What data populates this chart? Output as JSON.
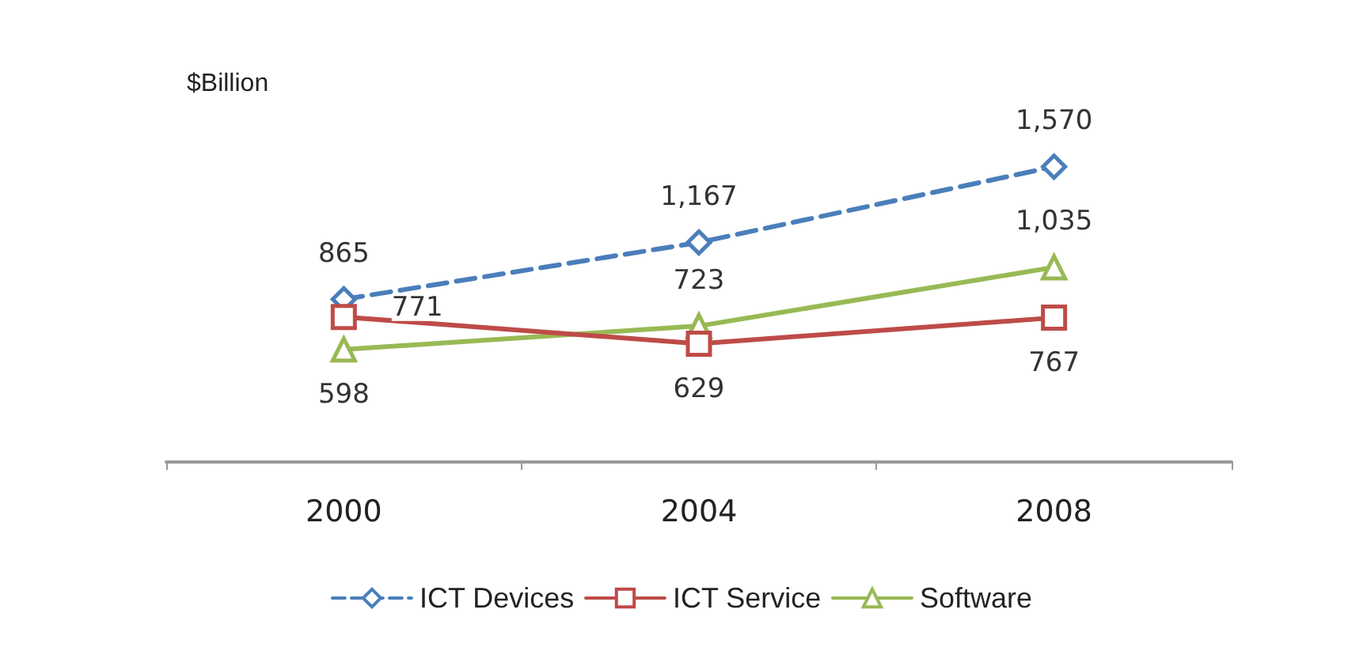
{
  "chart_data": {
    "type": "line",
    "ylabel": "$Billion",
    "categories": [
      "2000",
      "2004",
      "2008"
    ],
    "series": [
      {
        "name": "ICT Devices",
        "color": "#4a7ebb",
        "values": [
          865,
          1167,
          1570
        ],
        "value_labels": [
          "865",
          "1,167",
          "1,570"
        ],
        "marker": "diamond",
        "line_style": "dashed"
      },
      {
        "name": "ICT Service",
        "color": "#be4b48",
        "values": [
          771,
          629,
          767
        ],
        "value_labels": [
          "771",
          "629",
          "767"
        ],
        "marker": "square",
        "line_style": "solid"
      },
      {
        "name": "Software",
        "color": "#98b954",
        "values": [
          598,
          723,
          1035
        ],
        "value_labels": [
          "598",
          "723",
          "1,035"
        ],
        "marker": "triangle",
        "line_style": "solid"
      }
    ],
    "tick_labels": "x",
    "grid": false,
    "legend": "bottom"
  }
}
